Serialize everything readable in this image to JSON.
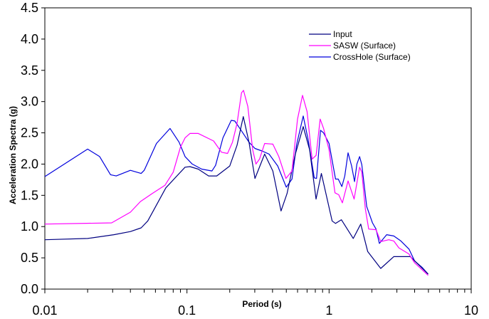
{
  "chart_data": {
    "type": "line",
    "title": "",
    "xlabel": "Period (s)",
    "ylabel": "Acceleration Spectra (g)",
    "xscale": "log",
    "xlim": [
      0.01,
      10
    ],
    "ylim": [
      0,
      4.5
    ],
    "xticks": [
      "0.01",
      "0.1",
      "1",
      "10"
    ],
    "yticks": [
      "0.0",
      "0.5",
      "1.0",
      "1.5",
      "2.0",
      "2.5",
      "3.0",
      "3.5",
      "4.0",
      "4.5"
    ],
    "grid": false,
    "legend_position": "top-right",
    "series": [
      {
        "name": "Input",
        "color": "#000080",
        "x": [
          0.01,
          0.02,
          0.0306,
          0.04,
          0.0476,
          0.053,
          0.071,
          0.097,
          0.105,
          0.12,
          0.142,
          0.162,
          0.2,
          0.225,
          0.249,
          0.273,
          0.301,
          0.352,
          0.402,
          0.459,
          0.506,
          0.579,
          0.658,
          0.73,
          0.809,
          0.883,
          1.05,
          1.11,
          1.22,
          1.48,
          1.67,
          1.87,
          2.31,
          2.85,
          3.73,
          4.98
        ],
        "y": [
          0.79,
          0.81,
          0.87,
          0.92,
          0.98,
          1.09,
          1.62,
          1.95,
          1.96,
          1.92,
          1.81,
          1.81,
          1.97,
          2.3,
          2.76,
          2.35,
          1.77,
          2.16,
          1.89,
          1.25,
          1.53,
          2.16,
          2.6,
          2.23,
          1.44,
          1.85,
          1.09,
          1.05,
          1.11,
          0.81,
          1.04,
          0.6,
          0.33,
          0.52,
          0.52,
          0.24
        ]
      },
      {
        "name": "SASW (Surface)",
        "color": "#FF00FF",
        "x": [
          0.01,
          0.0295,
          0.04,
          0.047,
          0.057,
          0.07,
          0.08,
          0.09,
          0.097,
          0.105,
          0.12,
          0.154,
          0.175,
          0.193,
          0.209,
          0.225,
          0.242,
          0.25,
          0.268,
          0.29,
          0.306,
          0.324,
          0.352,
          0.402,
          0.443,
          0.497,
          0.548,
          0.6,
          0.65,
          0.7,
          0.76,
          0.81,
          0.865,
          0.915,
          1.0,
          1.1,
          1.17,
          1.24,
          1.36,
          1.5,
          1.64,
          1.7,
          1.8,
          1.9,
          2.14,
          2.31,
          2.63,
          2.85,
          3.1,
          3.65,
          4.0,
          4.98
        ],
        "y": [
          1.04,
          1.06,
          1.23,
          1.4,
          1.53,
          1.66,
          1.87,
          2.27,
          2.42,
          2.49,
          2.49,
          2.37,
          2.19,
          2.17,
          2.35,
          2.65,
          3.14,
          3.18,
          2.92,
          2.23,
          2.0,
          2.08,
          2.33,
          2.32,
          2.12,
          1.77,
          1.89,
          2.72,
          3.1,
          2.84,
          2.08,
          2.14,
          2.72,
          2.57,
          2.23,
          1.54,
          1.51,
          1.38,
          1.73,
          1.44,
          1.95,
          1.87,
          1.28,
          0.96,
          0.95,
          0.76,
          0.79,
          0.77,
          0.66,
          0.56,
          0.42,
          0.22
        ]
      },
      {
        "name": "CrossHole (Surface)",
        "color": "#0000DD",
        "x": [
          0.01,
          0.02,
          0.0243,
          0.029,
          0.0318,
          0.04,
          0.0476,
          0.05,
          0.061,
          0.076,
          0.088,
          0.097,
          0.109,
          0.127,
          0.15,
          0.159,
          0.179,
          0.205,
          0.217,
          0.239,
          0.273,
          0.301,
          0.337,
          0.378,
          0.435,
          0.5,
          0.548,
          0.591,
          0.658,
          0.714,
          0.786,
          0.816,
          0.87,
          0.915,
          1.0,
          1.11,
          1.16,
          1.23,
          1.29,
          1.36,
          1.44,
          1.51,
          1.57,
          1.64,
          1.7,
          1.84,
          2.02,
          2.14,
          2.26,
          2.54,
          2.85,
          3.2,
          3.65,
          4.0,
          4.5,
          4.98
        ],
        "y": [
          1.8,
          2.24,
          2.12,
          1.83,
          1.81,
          1.9,
          1.85,
          1.9,
          2.33,
          2.57,
          2.35,
          2.12,
          2.0,
          1.92,
          1.89,
          1.98,
          2.42,
          2.7,
          2.69,
          2.55,
          2.35,
          2.25,
          2.21,
          2.16,
          1.97,
          1.63,
          1.76,
          2.31,
          2.77,
          2.38,
          1.78,
          1.77,
          2.54,
          2.5,
          2.33,
          1.76,
          1.76,
          1.64,
          1.81,
          2.18,
          1.97,
          1.72,
          2.0,
          2.12,
          1.99,
          1.32,
          1.06,
          0.96,
          0.73,
          0.87,
          0.85,
          0.77,
          0.64,
          0.45,
          0.35,
          0.24
        ]
      }
    ]
  }
}
